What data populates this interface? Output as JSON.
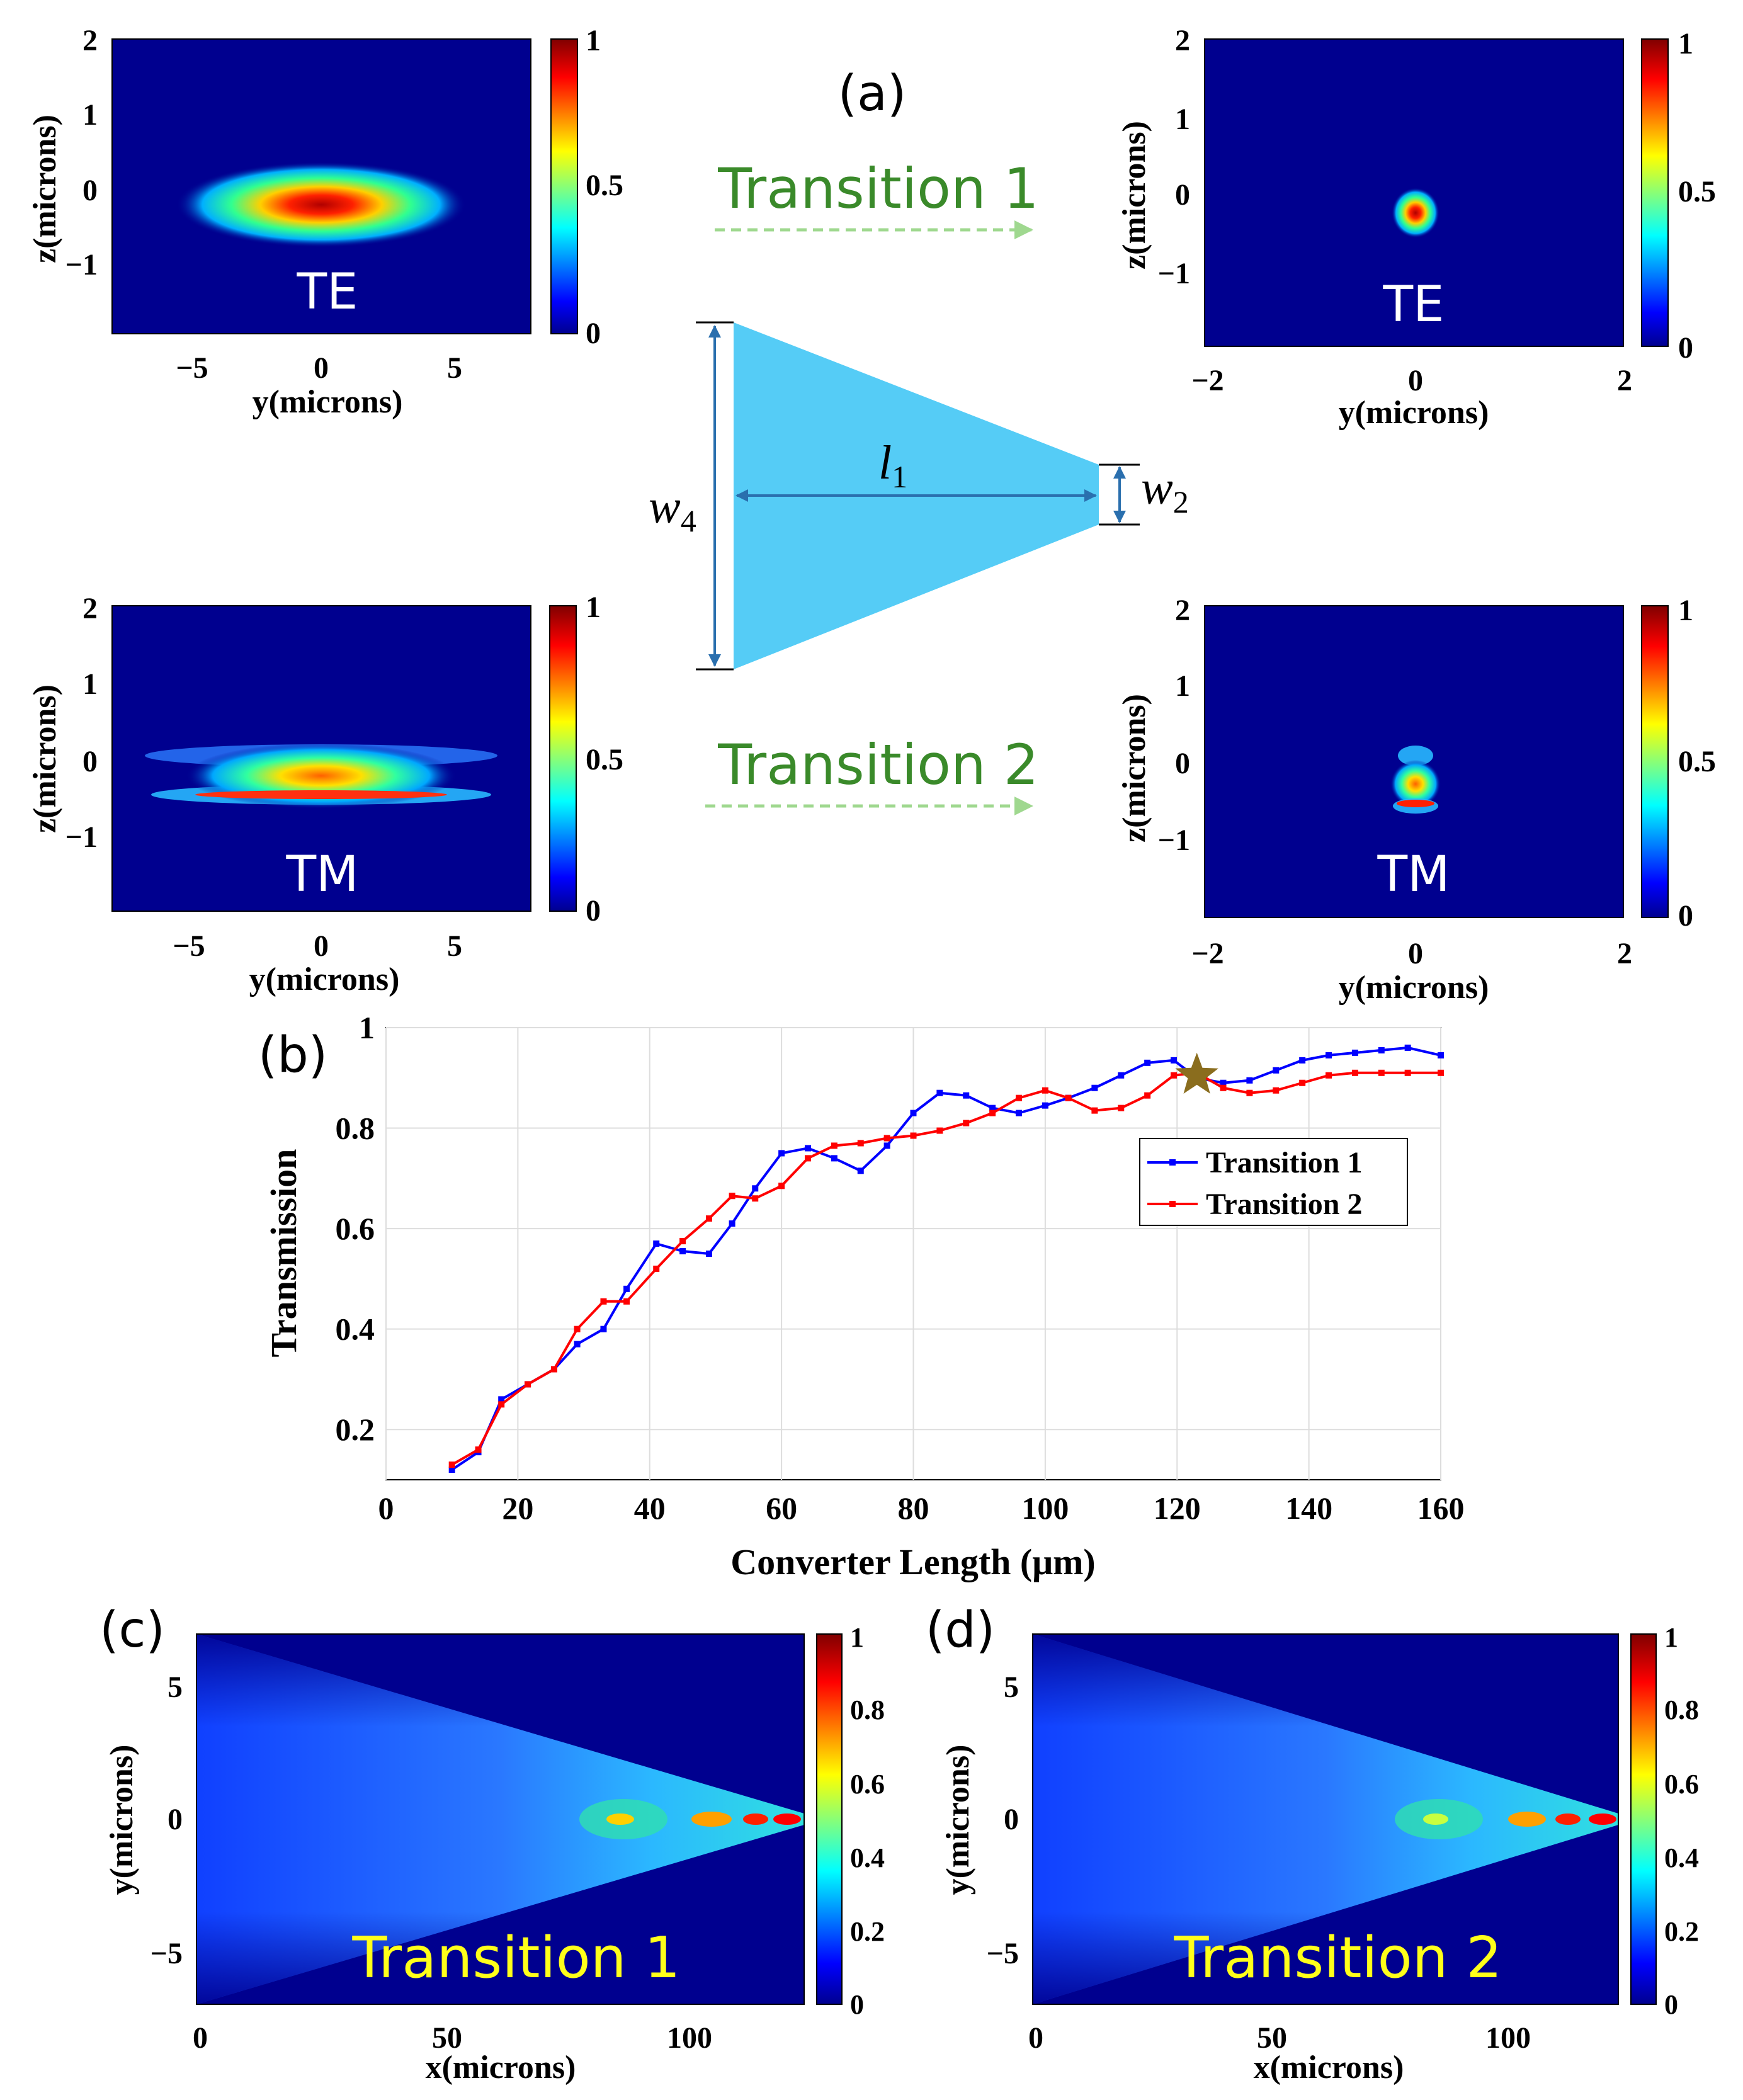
{
  "panel_labels": {
    "a": "(a)",
    "b": "(b)",
    "c": "(c)",
    "d": "(d)"
  },
  "panel_a": {
    "top_left": {
      "mode": "TE",
      "xlabel": "y(microns)",
      "ylabel": "z(microns)",
      "xticks": [
        "−5",
        "0",
        "5"
      ],
      "yticks": [
        "2",
        "1",
        "0",
        "−1"
      ],
      "cbar_ticks": [
        "1",
        "0.5",
        "0"
      ]
    },
    "top_right": {
      "mode": "TE",
      "xlabel": "y(microns)",
      "ylabel": "z(microns)",
      "xticks": [
        "−2",
        "0",
        "2"
      ],
      "yticks": [
        "2",
        "1",
        "0",
        "−1"
      ],
      "cbar_ticks": [
        "1",
        "0.5",
        "0"
      ]
    },
    "bottom_left": {
      "mode": "TM",
      "xlabel": "y(microns)",
      "ylabel": "z(microns)",
      "xticks": [
        "−5",
        "0",
        "5"
      ],
      "yticks": [
        "2",
        "1",
        "0",
        "−1"
      ],
      "cbar_ticks": [
        "1",
        "0.5",
        "0"
      ]
    },
    "bottom_right": {
      "mode": "TM",
      "xlabel": "y(microns)",
      "ylabel": "z(microns)",
      "xticks": [
        "−2",
        "0",
        "2"
      ],
      "yticks": [
        "2",
        "1",
        "0",
        "−1"
      ],
      "cbar_ticks": [
        "1",
        "0.5",
        "0"
      ]
    },
    "transition_1": "Transition 1",
    "transition_2": "Transition 2",
    "taper": {
      "w4": "w",
      "w4_sub": "4",
      "l1": "l",
      "l1_sub": "1",
      "w2": "w",
      "w2_sub": "2"
    }
  },
  "chart_data": {
    "type": "line",
    "title": "",
    "xlabel": "Converter Length (μm)",
    "ylabel": "Transmission",
    "xlim": [
      0,
      160
    ],
    "ylim": [
      0.1,
      1.0
    ],
    "xticks": [
      0,
      20,
      40,
      60,
      80,
      100,
      120,
      140,
      160
    ],
    "yticks": [
      0.2,
      0.4,
      0.6,
      0.8,
      1
    ],
    "ytick_labels": [
      "0.2",
      "0.4",
      "0.6",
      "0.8",
      "1"
    ],
    "grid": true,
    "legend_position": "right",
    "series": [
      {
        "name": "Transition 1",
        "color": "#0000ff",
        "x": [
          10,
          14,
          17.5,
          21.5,
          25.5,
          29,
          33,
          36.5,
          41,
          45,
          49,
          52.5,
          56,
          60,
          64,
          68,
          72,
          76,
          80,
          84,
          88,
          92,
          96,
          100,
          103.5,
          107.5,
          111.5,
          115.5,
          119.5,
          123,
          127,
          131,
          135,
          139,
          143,
          147,
          151,
          155,
          160
        ],
        "y": [
          0.12,
          0.155,
          0.26,
          0.29,
          0.32,
          0.37,
          0.4,
          0.48,
          0.57,
          0.555,
          0.55,
          0.61,
          0.68,
          0.75,
          0.76,
          0.74,
          0.715,
          0.765,
          0.83,
          0.87,
          0.865,
          0.84,
          0.83,
          0.845,
          0.86,
          0.88,
          0.905,
          0.93,
          0.935,
          0.9,
          0.89,
          0.895,
          0.915,
          0.935,
          0.945,
          0.95,
          0.955,
          0.96,
          0.945
        ]
      },
      {
        "name": "Transition 2",
        "color": "#ff0000",
        "x": [
          10,
          14,
          17.5,
          21.5,
          25.5,
          29,
          33,
          36.5,
          41,
          45,
          49,
          52.5,
          56,
          60,
          64,
          68,
          72,
          76,
          80,
          84,
          88,
          92,
          96,
          100,
          103.5,
          107.5,
          111.5,
          115.5,
          119.5,
          123,
          127,
          131,
          135,
          139,
          143,
          147,
          151,
          155,
          160
        ],
        "y": [
          0.13,
          0.16,
          0.25,
          0.29,
          0.32,
          0.4,
          0.455,
          0.455,
          0.52,
          0.575,
          0.62,
          0.665,
          0.66,
          0.685,
          0.74,
          0.765,
          0.77,
          0.78,
          0.785,
          0.795,
          0.81,
          0.83,
          0.86,
          0.875,
          0.86,
          0.835,
          0.84,
          0.865,
          0.905,
          0.91,
          0.88,
          0.87,
          0.875,
          0.89,
          0.905,
          0.91,
          0.91,
          0.91,
          0.91
        ]
      }
    ],
    "marker": {
      "type": "star",
      "x": 123,
      "y": 0.905,
      "color": "#8a6d1e"
    }
  },
  "panel_c": {
    "label": "Transition 1",
    "xlabel": "x(microns)",
    "ylabel": "y(microns)",
    "xticks": [
      "0",
      "50",
      "100"
    ],
    "yticks": [
      "5",
      "0",
      "−5"
    ],
    "cbar_ticks": [
      "1",
      "0.8",
      "0.6",
      "0.4",
      "0.2",
      "0"
    ]
  },
  "panel_d": {
    "label": "Transition 2",
    "xlabel": "x(microns)",
    "ylabel": "y(microns)",
    "xticks": [
      "0",
      "50",
      "100"
    ],
    "yticks": [
      "5",
      "0",
      "−5"
    ],
    "cbar_ticks": [
      "1",
      "0.8",
      "0.6",
      "0.4",
      "0.2",
      "0"
    ]
  }
}
